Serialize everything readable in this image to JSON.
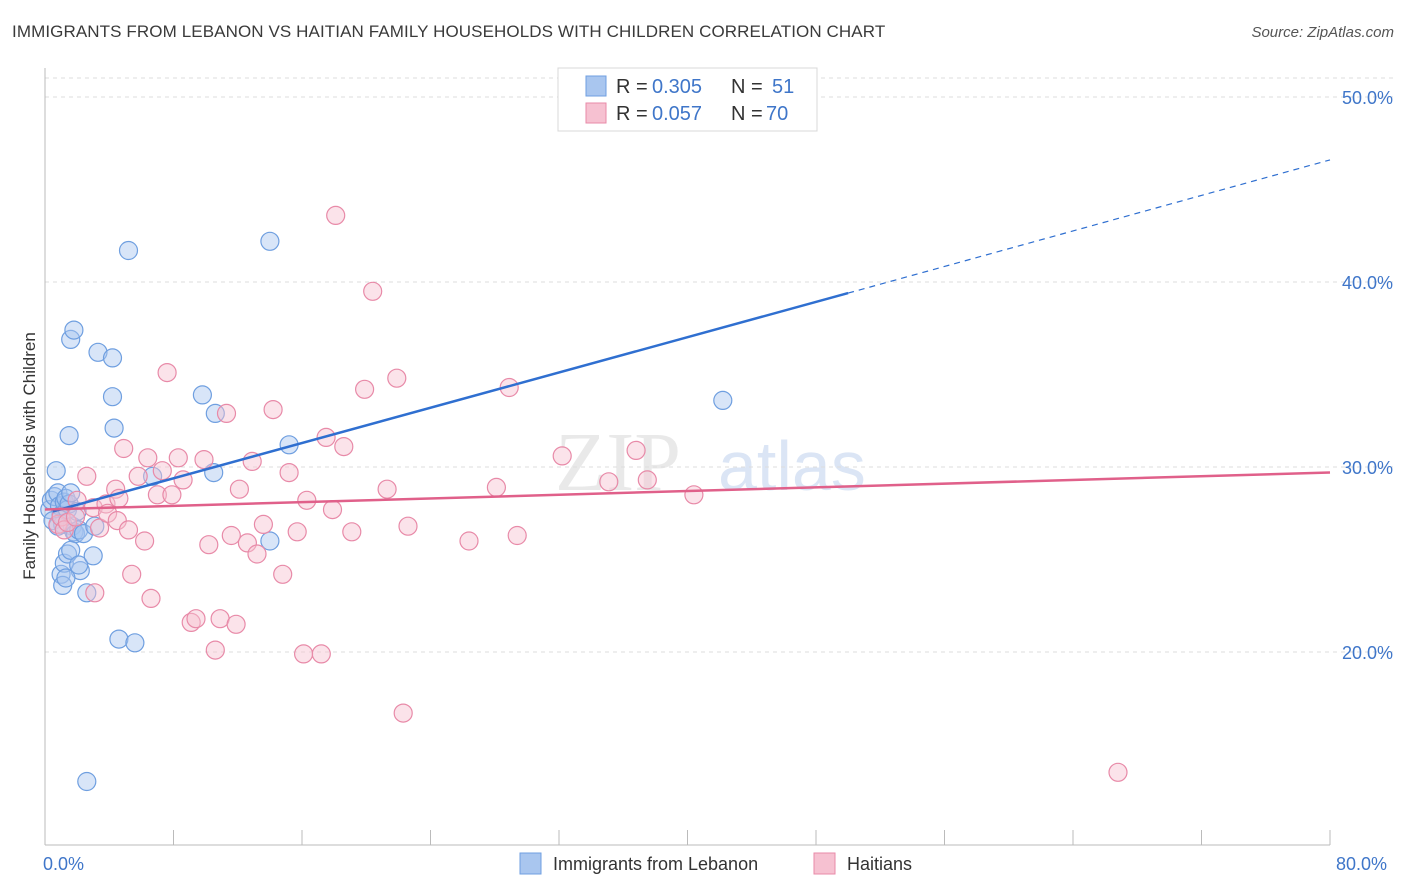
{
  "header": {
    "title": "IMMIGRANTS FROM LEBANON VS HAITIAN FAMILY HOUSEHOLDS WITH CHILDREN CORRELATION CHART",
    "source": "Source: ZipAtlas.com"
  },
  "watermark": {
    "zip": "ZIP",
    "atlas": "atlas"
  },
  "legend_top": [
    {
      "r_label": "R = ",
      "r_value": "0.305",
      "n_label": "N = ",
      "n_value": "51"
    },
    {
      "r_label": "R = ",
      "r_value": "0.057",
      "n_label": "N = ",
      "n_value": "70"
    }
  ],
  "chart_data": {
    "type": "scatter",
    "title": "IMMIGRANTS FROM LEBANON VS HAITIAN FAMILY HOUSEHOLDS WITH CHILDREN CORRELATION CHART",
    "xlabel": "",
    "ylabel": "Family Households with Children",
    "xlim": [
      0,
      80
    ],
    "ylim": [
      10,
      52
    ],
    "x_tick_labels": [
      "0.0%",
      "80.0%"
    ],
    "y_ticks": [
      20,
      30,
      40,
      50
    ],
    "y_tick_labels": [
      "20.0%",
      "30.0%",
      "40.0%",
      "50.0%"
    ],
    "legend_placement": "top-center",
    "series": [
      {
        "name": "Immigrants from Lebanon",
        "color": "#6f9fe0",
        "fill": "#a9c6ef",
        "line_color": "#2f6fd0",
        "trend": {
          "x0": 0.5,
          "y0": 27.6,
          "x1": 50.0,
          "y1": 39.4,
          "dash_x1": 80.0,
          "dash_y1": 46.6
        },
        "points": [
          [
            0.3,
            27.7
          ],
          [
            0.4,
            28.2
          ],
          [
            0.5,
            27.1
          ],
          [
            0.6,
            28.4
          ],
          [
            0.7,
            29.8
          ],
          [
            0.8,
            28.6
          ],
          [
            0.9,
            27.9
          ],
          [
            1.0,
            27.4
          ],
          [
            1.1,
            26.9
          ],
          [
            1.2,
            28.1
          ],
          [
            1.3,
            28.3
          ],
          [
            1.4,
            27.7
          ],
          [
            1.5,
            28.0
          ],
          [
            1.6,
            28.6
          ],
          [
            1.7,
            26.8
          ],
          [
            1.8,
            26.5
          ],
          [
            1.9,
            26.4
          ],
          [
            2.0,
            27.6
          ],
          [
            2.1,
            26.6
          ],
          [
            2.2,
            24.4
          ],
          [
            1.0,
            24.2
          ],
          [
            1.1,
            23.6
          ],
          [
            1.2,
            24.8
          ],
          [
            1.3,
            24.0
          ],
          [
            1.4,
            25.3
          ],
          [
            1.6,
            25.5
          ],
          [
            2.1,
            24.7
          ],
          [
            2.4,
            26.4
          ],
          [
            2.6,
            23.2
          ],
          [
            3.0,
            25.2
          ],
          [
            1.5,
            31.7
          ],
          [
            1.6,
            36.9
          ],
          [
            1.8,
            37.4
          ],
          [
            3.3,
            36.2
          ],
          [
            4.2,
            35.9
          ],
          [
            4.2,
            33.8
          ],
          [
            4.3,
            32.1
          ],
          [
            3.1,
            26.8
          ],
          [
            4.6,
            20.7
          ],
          [
            5.6,
            20.5
          ],
          [
            5.2,
            41.7
          ],
          [
            2.6,
            13.0
          ],
          [
            6.7,
            29.5
          ],
          [
            9.8,
            33.9
          ],
          [
            10.5,
            29.7
          ],
          [
            10.6,
            32.9
          ],
          [
            14.0,
            42.2
          ],
          [
            15.2,
            31.2
          ],
          [
            14.0,
            26.0
          ],
          [
            42.2,
            33.6
          ],
          [
            0.8,
            26.8
          ]
        ]
      },
      {
        "name": "Haitians",
        "color": "#e88aa8",
        "fill": "#f6c1d1",
        "line_color": "#e0608a",
        "trend": {
          "x0": 0.0,
          "y0": 27.7,
          "x1": 80.0,
          "y1": 29.7
        },
        "points": [
          [
            0.8,
            26.9
          ],
          [
            1.0,
            27.3
          ],
          [
            1.2,
            26.6
          ],
          [
            1.4,
            27.0
          ],
          [
            2.0,
            28.2
          ],
          [
            2.6,
            29.5
          ],
          [
            3.0,
            27.8
          ],
          [
            3.1,
            23.2
          ],
          [
            3.4,
            26.7
          ],
          [
            3.8,
            28.0
          ],
          [
            3.9,
            27.5
          ],
          [
            4.4,
            28.8
          ],
          [
            4.5,
            27.1
          ],
          [
            4.6,
            28.3
          ],
          [
            4.9,
            31.0
          ],
          [
            5.2,
            26.6
          ],
          [
            5.4,
            24.2
          ],
          [
            5.8,
            29.5
          ],
          [
            6.2,
            26.0
          ],
          [
            6.4,
            30.5
          ],
          [
            6.6,
            22.9
          ],
          [
            7.0,
            28.5
          ],
          [
            7.3,
            29.8
          ],
          [
            7.6,
            35.1
          ],
          [
            7.9,
            28.5
          ],
          [
            8.3,
            30.5
          ],
          [
            8.6,
            29.3
          ],
          [
            9.1,
            21.6
          ],
          [
            9.4,
            21.8
          ],
          [
            9.9,
            30.4
          ],
          [
            10.2,
            25.8
          ],
          [
            10.6,
            20.1
          ],
          [
            10.9,
            21.8
          ],
          [
            11.3,
            32.9
          ],
          [
            11.6,
            26.3
          ],
          [
            12.1,
            28.8
          ],
          [
            12.6,
            25.9
          ],
          [
            12.9,
            30.3
          ],
          [
            13.2,
            25.3
          ],
          [
            13.6,
            26.9
          ],
          [
            14.2,
            33.1
          ],
          [
            14.8,
            24.2
          ],
          [
            15.2,
            29.7
          ],
          [
            15.7,
            26.5
          ],
          [
            16.1,
            19.9
          ],
          [
            16.3,
            28.2
          ],
          [
            17.2,
            19.9
          ],
          [
            17.5,
            31.6
          ],
          [
            17.9,
            27.7
          ],
          [
            18.6,
            31.1
          ],
          [
            19.1,
            26.5
          ],
          [
            18.1,
            43.6
          ],
          [
            19.9,
            34.2
          ],
          [
            20.4,
            39.5
          ],
          [
            21.3,
            28.8
          ],
          [
            21.9,
            34.8
          ],
          [
            22.3,
            16.7
          ],
          [
            22.6,
            26.8
          ],
          [
            26.4,
            26.0
          ],
          [
            28.1,
            28.9
          ],
          [
            28.9,
            34.3
          ],
          [
            29.4,
            26.3
          ],
          [
            32.2,
            30.6
          ],
          [
            35.1,
            29.2
          ],
          [
            36.8,
            30.9
          ],
          [
            37.5,
            29.3
          ],
          [
            40.4,
            28.5
          ],
          [
            66.8,
            13.5
          ],
          [
            11.9,
            21.5
          ],
          [
            1.9,
            27.3
          ]
        ]
      }
    ]
  },
  "legend_bottom": [
    {
      "label": "Immigrants from Lebanon"
    },
    {
      "label": "Haitians"
    }
  ]
}
